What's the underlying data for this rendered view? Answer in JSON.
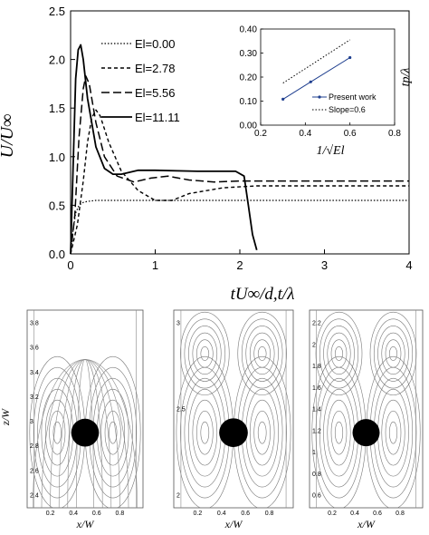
{
  "chart_data": [
    {
      "type": "line",
      "title": "",
      "xlabel": "tU∞/d,t/λ",
      "ylabel": "U/U∞",
      "xlim": [
        0,
        4
      ],
      "ylim": [
        0,
        2.5
      ],
      "xticks": [
        "0",
        "1",
        "2",
        "3",
        "4"
      ],
      "yticks": [
        "0.0",
        "0.5",
        "1.0",
        "1.5",
        "2.0",
        "2.5"
      ],
      "legend_position": "top-left-center",
      "grid": false,
      "series": [
        {
          "name": "El=0.00",
          "style": "dotted",
          "x": [
            0,
            0.03,
            0.06,
            0.1,
            0.15,
            0.2,
            0.3,
            0.5,
            1.0,
            2.0,
            3.0,
            4.0
          ],
          "y": [
            0,
            0.25,
            0.42,
            0.5,
            0.53,
            0.54,
            0.55,
            0.55,
            0.55,
            0.55,
            0.55,
            0.55
          ]
        },
        {
          "name": "El=2.78",
          "style": "dashed",
          "x": [
            0,
            0.08,
            0.15,
            0.2,
            0.25,
            0.3,
            0.35,
            0.45,
            0.6,
            0.8,
            1.0,
            1.2,
            1.4,
            1.8,
            2.2,
            4.0
          ],
          "y": [
            0,
            0.3,
            0.75,
            1.15,
            1.4,
            1.48,
            1.42,
            1.15,
            0.85,
            0.65,
            0.55,
            0.55,
            0.62,
            0.68,
            0.7,
            0.7
          ]
        },
        {
          "name": "El=5.56",
          "style": "long-dashed",
          "x": [
            0,
            0.05,
            0.1,
            0.15,
            0.18,
            0.22,
            0.3,
            0.4,
            0.55,
            0.75,
            0.95,
            1.15,
            1.4,
            1.7,
            2.0,
            2.5,
            4.0
          ],
          "y": [
            0,
            0.4,
            1.2,
            1.7,
            1.83,
            1.75,
            1.35,
            1.0,
            0.8,
            0.74,
            0.78,
            0.8,
            0.76,
            0.74,
            0.75,
            0.75,
            0.75
          ]
        },
        {
          "name": "El=11.11",
          "style": "solid",
          "x": [
            0,
            0.03,
            0.06,
            0.09,
            0.12,
            0.15,
            0.2,
            0.3,
            0.4,
            0.5,
            0.6,
            0.8,
            1.0,
            1.5,
            1.95,
            2.05,
            2.1,
            2.15,
            2.2
          ],
          "y": [
            0,
            0.9,
            1.8,
            2.1,
            2.15,
            2.0,
            1.6,
            1.1,
            0.88,
            0.82,
            0.82,
            0.86,
            0.86,
            0.85,
            0.85,
            0.8,
            0.5,
            0.2,
            0.04
          ]
        }
      ]
    },
    {
      "type": "line",
      "title": "",
      "xlabel": "1/√El",
      "ylabel": "tp/λ",
      "xlim": [
        0.2,
        0.8
      ],
      "ylim": [
        0.0,
        0.4
      ],
      "xticks": [
        "0.2",
        "0.4",
        "0.6",
        "0.8"
      ],
      "yticks": [
        "0.00",
        "0.10",
        "0.20",
        "0.30",
        "0.40"
      ],
      "legend_position": "bottom-right",
      "series": [
        {
          "name": "Present work",
          "style": "solid-markers",
          "x": [
            0.3,
            0.424,
            0.6
          ],
          "y": [
            0.108,
            0.18,
            0.281
          ]
        },
        {
          "name": "Slope=0.6",
          "style": "dotted",
          "x": [
            0.3,
            0.6
          ],
          "y": [
            0.175,
            0.355
          ]
        }
      ]
    }
  ],
  "panels": [
    {
      "name": "streamline-panel-1",
      "xlabel": "x/W",
      "ylabel": "z/W",
      "xticks": [
        "0.2",
        "0.4",
        "0.6",
        "0.8"
      ],
      "yticks": [
        "3.8",
        "3.6",
        "3.4",
        "3.2",
        "3",
        "2.8",
        "2.6",
        "2.4"
      ]
    },
    {
      "name": "streamline-panel-2",
      "xlabel": "x/W",
      "xticks": [
        "0.2",
        "0.4",
        "0.6",
        "0.8"
      ],
      "yticks": [
        "3",
        "2.5",
        "2"
      ]
    },
    {
      "name": "streamline-panel-3",
      "xlabel": "x/W",
      "xticks": [
        "0.2",
        "0.4",
        "0.6",
        "0.8"
      ],
      "yticks": [
        "2.2",
        "2",
        "1.8",
        "1.6",
        "1.4",
        "1.2",
        "1",
        "0.8",
        "0.6"
      ]
    }
  ]
}
